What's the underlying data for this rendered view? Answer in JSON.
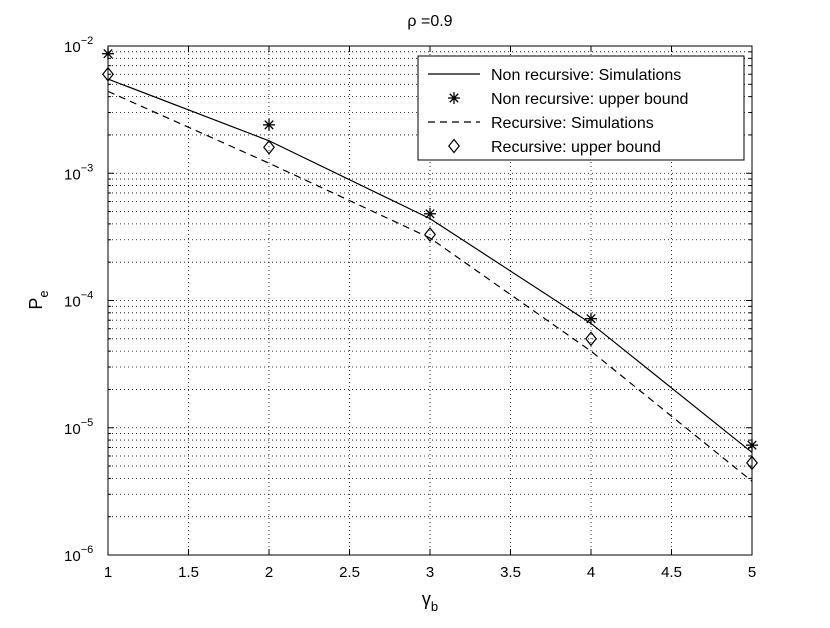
{
  "chart_data": {
    "type": "line",
    "title": "ρ =0.9",
    "xlabel": "γ",
    "xlabel_sub": "b",
    "ylabel": "P",
    "ylabel_sub": "e",
    "x_scale": "linear",
    "y_scale": "log",
    "xlim": [
      1,
      5
    ],
    "ylim": [
      1e-06,
      0.01
    ],
    "x_ticks": [
      1,
      1.5,
      2,
      2.5,
      3,
      3.5,
      4,
      4.5,
      5
    ],
    "x_tick_labels": [
      "1",
      "1.5",
      "2",
      "2.5",
      "3",
      "3.5",
      "4",
      "4.5",
      "5"
    ],
    "y_ticks": [
      {
        "value": 1e-06,
        "base": "10",
        "exp": "−6"
      },
      {
        "value": 1e-05,
        "base": "10",
        "exp": "−5"
      },
      {
        "value": 0.0001,
        "base": "10",
        "exp": "−4"
      },
      {
        "value": 0.001,
        "base": "10",
        "exp": "−3"
      },
      {
        "value": 0.01,
        "base": "10",
        "exp": "−2"
      }
    ],
    "grid": true,
    "legend_position": "top-right",
    "x": [
      1,
      2,
      3,
      4,
      5
    ],
    "series": [
      {
        "name": "Non recursive: Simulations",
        "style": "solid",
        "marker": "none",
        "color": "#000000",
        "values": [
          0.0055,
          0.0018,
          0.00044,
          6.6e-05,
          6.4e-06
        ]
      },
      {
        "name": "Non recursive: upper bound",
        "style": "none",
        "marker": "star",
        "color": "#000000",
        "values": [
          0.0087,
          0.0024,
          0.00048,
          7.2e-05,
          7.3e-06
        ]
      },
      {
        "name": "Recursive: Simulations",
        "style": "dashed",
        "marker": "none",
        "color": "#000000",
        "values": [
          0.0044,
          0.0012,
          0.00031,
          4e-05,
          3.8e-06
        ]
      },
      {
        "name": "Recursive: upper bound",
        "style": "none",
        "marker": "diamond",
        "color": "#000000",
        "values": [
          0.006,
          0.0016,
          0.00033,
          5e-05,
          5.3e-06
        ]
      }
    ]
  }
}
